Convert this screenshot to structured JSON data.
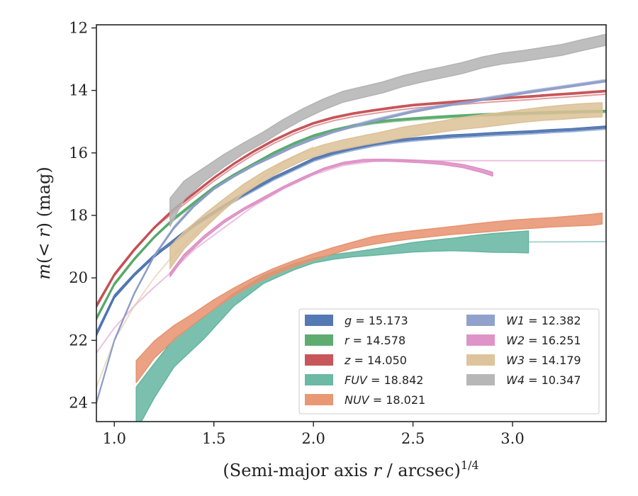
{
  "chart_data": {
    "type": "line",
    "xlabel": "(Semi-major axis r / arcsec)",
    "xlabel_base": "(Semi-major axis ",
    "xlabel_var": "r",
    "xlabel_rest": " / arcsec)",
    "xlabel_exp": "1/4",
    "ylabel": "m(< r) (mag)",
    "ylabel_m": "m",
    "ylabel_mid": "(< ",
    "ylabel_r": "r",
    "ylabel_close": ")",
    "ylabel_unit": " (mag)",
    "xlim": [
      0.91,
      3.47
    ],
    "ylim": [
      24.6,
      11.9
    ],
    "y_inverted": true,
    "xticks": [
      1.0,
      1.5,
      2.0,
      2.5,
      3.0
    ],
    "xtick_labels": [
      "1.0",
      "1.5",
      "2.0",
      "2.5",
      "3.0"
    ],
    "yticks": [
      12,
      14,
      16,
      18,
      20,
      22,
      24
    ],
    "ytick_labels": [
      "12",
      "14",
      "16",
      "18",
      "20",
      "22",
      "24"
    ],
    "grid": false,
    "legend_position": "bottom-right",
    "legend_columns": 2,
    "series": [
      {
        "name": "g",
        "label_value": "15.173",
        "color": "#4c72b0",
        "x": [
          0.91,
          1.0,
          1.1,
          1.2,
          1.3,
          1.4,
          1.5,
          1.6,
          1.7,
          1.8,
          1.9,
          2.0,
          2.1,
          2.2,
          2.3,
          2.4,
          2.5,
          2.6,
          2.7,
          2.8,
          2.9,
          3.0,
          3.1,
          3.2,
          3.3,
          3.47
        ],
        "y": [
          21.8,
          20.6,
          19.9,
          19.3,
          18.8,
          18.3,
          17.9,
          17.5,
          17.15,
          16.8,
          16.5,
          16.2,
          16.0,
          15.85,
          15.72,
          15.62,
          15.55,
          15.5,
          15.45,
          15.42,
          15.38,
          15.35,
          15.32,
          15.28,
          15.25,
          15.17
        ],
        "width": [
          0.12,
          0.1,
          0.08,
          0.08,
          0.07,
          0.07,
          0.06,
          0.06,
          0.06,
          0.06,
          0.06,
          0.06,
          0.06,
          0.06,
          0.06,
          0.06,
          0.06,
          0.06,
          0.06,
          0.06,
          0.06,
          0.06,
          0.06,
          0.06,
          0.06,
          0.06
        ],
        "faint_start": 1.28,
        "faint_offset": 0.07
      },
      {
        "name": "r",
        "label_value": "14.578",
        "color": "#55a868",
        "x": [
          0.91,
          1.0,
          1.1,
          1.2,
          1.3,
          1.4,
          1.5,
          1.6,
          1.7,
          1.8,
          1.9,
          2.0,
          2.1,
          2.2,
          2.3,
          2.4,
          2.5,
          2.6,
          2.7,
          2.8,
          2.9,
          3.0,
          3.1,
          3.2,
          3.3,
          3.47
        ],
        "y": [
          21.3,
          20.2,
          19.4,
          18.7,
          18.1,
          17.6,
          17.1,
          16.7,
          16.35,
          16.0,
          15.7,
          15.45,
          15.27,
          15.13,
          15.02,
          14.95,
          14.9,
          14.86,
          14.82,
          14.79,
          14.76,
          14.74,
          14.72,
          14.7,
          14.68,
          14.66
        ],
        "width": [
          0.1,
          0.08,
          0.07,
          0.06,
          0.06,
          0.06,
          0.05,
          0.05,
          0.05,
          0.05,
          0.05,
          0.05,
          0.05,
          0.05,
          0.05,
          0.05,
          0.05,
          0.05,
          0.05,
          0.05,
          0.05,
          0.05,
          0.05,
          0.05,
          0.05,
          0.05
        ],
        "faint_start": 1.28,
        "faint_offset": 0.05
      },
      {
        "name": "z",
        "label_value": "14.050",
        "color": "#c44e52",
        "x": [
          0.91,
          1.0,
          1.1,
          1.2,
          1.3,
          1.4,
          1.5,
          1.6,
          1.7,
          1.8,
          1.9,
          2.0,
          2.1,
          2.2,
          2.3,
          2.4,
          2.5,
          2.6,
          2.7,
          2.8,
          2.9,
          3.0,
          3.1,
          3.2,
          3.3,
          3.47
        ],
        "y": [
          20.9,
          19.9,
          19.1,
          18.4,
          17.8,
          17.3,
          16.8,
          16.35,
          15.95,
          15.6,
          15.3,
          15.05,
          14.87,
          14.74,
          14.64,
          14.55,
          14.47,
          14.42,
          14.37,
          14.32,
          14.27,
          14.23,
          14.19,
          14.14,
          14.1,
          14.02
        ],
        "width": [
          0.1,
          0.08,
          0.07,
          0.06,
          0.06,
          0.06,
          0.05,
          0.05,
          0.05,
          0.05,
          0.05,
          0.05,
          0.05,
          0.05,
          0.05,
          0.05,
          0.05,
          0.05,
          0.05,
          0.05,
          0.05,
          0.05,
          0.05,
          0.05,
          0.05,
          0.05
        ],
        "faint_start": 1.28,
        "faint_offset": 0.1
      },
      {
        "name": "FUV",
        "label_value": "18.842",
        "color": "#64b5a0",
        "x": [
          1.11,
          1.2,
          1.3,
          1.45,
          1.6,
          1.75,
          1.9,
          2.0,
          2.1,
          2.2,
          2.3,
          2.4,
          2.5,
          2.6,
          2.7,
          2.8,
          2.9,
          3.0,
          3.08
        ],
        "y": [
          24.2,
          23.3,
          22.4,
          21.6,
          20.7,
          20.05,
          19.65,
          19.45,
          19.33,
          19.25,
          19.18,
          19.1,
          19.02,
          18.97,
          18.93,
          18.9,
          18.88,
          18.86,
          18.85
        ],
        "width": [
          1.4,
          1.1,
          0.9,
          0.7,
          0.4,
          0.25,
          0.2,
          0.15,
          0.15,
          0.15,
          0.2,
          0.25,
          0.3,
          0.35,
          0.4,
          0.5,
          0.6,
          0.65,
          0.7
        ],
        "faint_x": [
          3.08,
          3.47
        ],
        "faint_y": [
          18.85,
          18.84
        ]
      },
      {
        "name": "NUV",
        "label_value": "18.021",
        "color": "#e8926e",
        "x": [
          1.11,
          1.2,
          1.3,
          1.4,
          1.5,
          1.6,
          1.7,
          1.8,
          1.9,
          2.0,
          2.1,
          2.2,
          2.3,
          2.4,
          2.5,
          2.6,
          2.7,
          2.8,
          2.9,
          3.0,
          3.1,
          3.2,
          3.3,
          3.4,
          3.45
        ],
        "y": [
          23.0,
          22.3,
          21.75,
          21.3,
          20.85,
          20.45,
          20.1,
          19.8,
          19.55,
          19.33,
          19.13,
          18.95,
          18.8,
          18.7,
          18.62,
          18.55,
          18.48,
          18.42,
          18.36,
          18.3,
          18.26,
          18.22,
          18.18,
          18.14,
          18.1
        ],
        "width": [
          0.7,
          0.55,
          0.45,
          0.35,
          0.3,
          0.25,
          0.22,
          0.2,
          0.2,
          0.2,
          0.2,
          0.2,
          0.25,
          0.25,
          0.25,
          0.25,
          0.25,
          0.28,
          0.3,
          0.3,
          0.3,
          0.3,
          0.32,
          0.35,
          0.35
        ]
      },
      {
        "name": "W1",
        "label_value": "12.382",
        "color": "#8c9cc8",
        "x": [
          0.91,
          1.0,
          1.1,
          1.2,
          1.3,
          1.4,
          1.5,
          1.6,
          1.7,
          1.8,
          1.9,
          2.0,
          2.1,
          2.2,
          2.3,
          2.4,
          2.5,
          2.6,
          2.7,
          2.8,
          2.9,
          3.0,
          3.1,
          3.2,
          3.3,
          3.47
        ],
        "y": [
          24.0,
          22.0,
          20.5,
          19.3,
          18.4,
          17.7,
          17.15,
          16.75,
          16.4,
          16.1,
          15.8,
          15.55,
          15.33,
          15.15,
          14.98,
          14.83,
          14.68,
          14.56,
          14.45,
          14.35,
          14.24,
          14.14,
          14.04,
          13.95,
          13.86,
          13.7
        ],
        "width": [
          0.06,
          0.05,
          0.05,
          0.05,
          0.05,
          0.05,
          0.05,
          0.05,
          0.05,
          0.05,
          0.05,
          0.05,
          0.05,
          0.05,
          0.05,
          0.05,
          0.05,
          0.05,
          0.05,
          0.05,
          0.05,
          0.05,
          0.05,
          0.05,
          0.05,
          0.05
        ],
        "faint_start": 1.28,
        "faint_offset": -0.05
      },
      {
        "name": "W2",
        "label_value": "16.251",
        "color": "#dd8ec4",
        "x": [
          1.28,
          1.35,
          1.45,
          1.55,
          1.65,
          1.75,
          1.85,
          1.95,
          2.05,
          2.15,
          2.25,
          2.35,
          2.45,
          2.55,
          2.65,
          2.75,
          2.85,
          2.9
        ],
        "y": [
          19.9,
          19.3,
          18.7,
          18.2,
          17.8,
          17.45,
          17.1,
          16.8,
          16.52,
          16.33,
          16.24,
          16.23,
          16.25,
          16.28,
          16.33,
          16.42,
          16.58,
          16.68
        ],
        "width": [
          0.12,
          0.1,
          0.09,
          0.08,
          0.07,
          0.07,
          0.06,
          0.06,
          0.06,
          0.06,
          0.06,
          0.06,
          0.07,
          0.08,
          0.09,
          0.1,
          0.11,
          0.12
        ],
        "faint_x": [
          0.91,
          1.0,
          1.1,
          1.2,
          1.28,
          1.4,
          1.55,
          1.7,
          1.85,
          2.0,
          2.15,
          2.3,
          2.5,
          2.8,
          3.1,
          3.47
        ],
        "faint_y": [
          22.4,
          21.6,
          20.9,
          20.3,
          19.85,
          19.1,
          18.4,
          17.7,
          17.15,
          16.7,
          16.4,
          16.27,
          16.25,
          16.25,
          16.25,
          16.25
        ]
      },
      {
        "name": "W3",
        "label_value": "14.179",
        "color": "#dcc197",
        "x": [
          1.28,
          1.35,
          1.45,
          1.55,
          1.65,
          1.75,
          1.85,
          1.95,
          2.05,
          2.15,
          2.25,
          2.35,
          2.45,
          2.55,
          2.65,
          2.75,
          2.85,
          2.95,
          3.05,
          3.15,
          3.25,
          3.35,
          3.45
        ],
        "y": [
          19.35,
          18.8,
          18.2,
          17.65,
          17.15,
          16.75,
          16.4,
          16.1,
          15.88,
          15.73,
          15.6,
          15.48,
          15.35,
          15.25,
          15.15,
          15.05,
          14.98,
          14.9,
          14.82,
          14.75,
          14.7,
          14.65,
          14.62
        ],
        "width": [
          0.7,
          0.55,
          0.45,
          0.35,
          0.3,
          0.3,
          0.28,
          0.28,
          0.28,
          0.3,
          0.3,
          0.32,
          0.35,
          0.35,
          0.35,
          0.38,
          0.4,
          0.4,
          0.4,
          0.42,
          0.45,
          0.45,
          0.45
        ],
        "faint_x": [
          0.91,
          1.0,
          1.1,
          1.2,
          1.28,
          1.4,
          1.55,
          1.7,
          1.85,
          2.0
        ],
        "faint_y": [
          23.5,
          22.0,
          20.9,
          20.0,
          19.4,
          18.6,
          17.8,
          17.0,
          16.3,
          15.8
        ]
      },
      {
        "name": "W4",
        "label_value": "10.347",
        "color": "#b3b3b3",
        "x": [
          1.28,
          1.35,
          1.45,
          1.55,
          1.65,
          1.75,
          1.85,
          1.95,
          2.05,
          2.15,
          2.25,
          2.35,
          2.45,
          2.55,
          2.65,
          2.75,
          2.85,
          2.95,
          3.05,
          3.15,
          3.25,
          3.35,
          3.47
        ],
        "y": [
          17.9,
          17.2,
          16.7,
          16.25,
          15.85,
          15.5,
          15.1,
          14.75,
          14.45,
          14.2,
          14.05,
          13.9,
          13.7,
          13.55,
          13.42,
          13.28,
          13.1,
          12.98,
          12.9,
          12.8,
          12.7,
          12.55,
          12.38
        ],
        "width": [
          0.9,
          0.6,
          0.45,
          0.4,
          0.35,
          0.35,
          0.35,
          0.35,
          0.35,
          0.35,
          0.35,
          0.35,
          0.35,
          0.35,
          0.35,
          0.35,
          0.35,
          0.35,
          0.35,
          0.35,
          0.35,
          0.35,
          0.35
        ]
      }
    ]
  }
}
